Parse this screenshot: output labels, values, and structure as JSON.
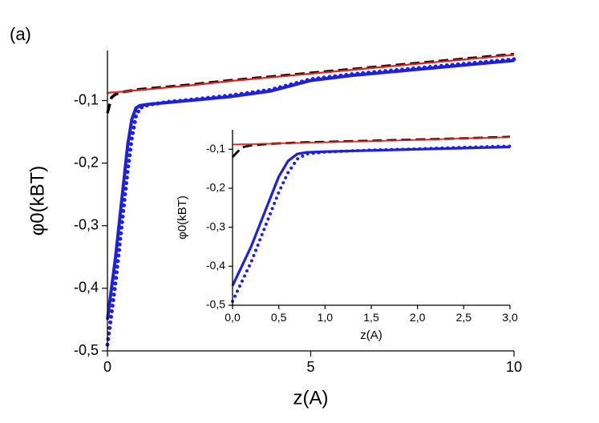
{
  "chart_data": [
    {
      "type": "line",
      "annotation": "(a)",
      "xlabel": "z(A)",
      "ylabel": "φ0(kBT)",
      "xlim": [
        0,
        10
      ],
      "ylim": [
        -0.5,
        -0.02
      ],
      "xticks": [
        0,
        5,
        10
      ],
      "yticks": [
        {
          "value": -0.5,
          "label": "-0,5"
        },
        {
          "value": -0.4,
          "label": "-0,4"
        },
        {
          "value": -0.3,
          "label": "-0,3"
        },
        {
          "value": -0.2,
          "label": "-0,2"
        },
        {
          "value": -0.1,
          "label": "-0,1"
        }
      ],
      "x": [
        0,
        0.1,
        0.2,
        0.3,
        0.4,
        0.5,
        0.6,
        0.7,
        0.8,
        1,
        1.5,
        2,
        3,
        4,
        5,
        6,
        7,
        8,
        9,
        10
      ],
      "series": [
        {
          "color": "#1f1fe0",
          "style": "solid",
          "values": [
            -0.45,
            -0.4,
            -0.35,
            -0.29,
            -0.23,
            -0.17,
            -0.13,
            -0.112,
            -0.108,
            -0.106,
            -0.103,
            -0.1,
            -0.094,
            -0.085,
            -0.068,
            -0.06,
            -0.054,
            -0.048,
            -0.042,
            -0.036
          ]
        },
        {
          "color": "#1f1fe0",
          "style": "dotted",
          "values": [
            -0.49,
            -0.44,
            -0.39,
            -0.33,
            -0.27,
            -0.21,
            -0.16,
            -0.125,
            -0.112,
            -0.107,
            -0.102,
            -0.099,
            -0.092,
            -0.083,
            -0.066,
            -0.058,
            -0.052,
            -0.046,
            -0.04,
            -0.034
          ]
        },
        {
          "color": "#000000",
          "style": "dashed",
          "values": [
            -0.12,
            -0.095,
            -0.09,
            -0.088,
            -0.086,
            -0.085,
            -0.084,
            -0.083,
            -0.082,
            -0.081,
            -0.078,
            -0.075,
            -0.068,
            -0.062,
            -0.056,
            -0.05,
            -0.044,
            -0.038,
            -0.032,
            -0.026
          ]
        },
        {
          "color": "#e0201b",
          "style": "solid",
          "values": [
            -0.088,
            -0.087,
            -0.087,
            -0.086,
            -0.086,
            -0.085,
            -0.084,
            -0.084,
            -0.083,
            -0.082,
            -0.079,
            -0.076,
            -0.069,
            -0.063,
            -0.057,
            -0.051,
            -0.045,
            -0.039,
            -0.033,
            -0.027
          ]
        }
      ]
    },
    {
      "type": "line",
      "xlabel": "z(A)",
      "ylabel": "φ0(kBT)",
      "xlim": [
        0,
        3
      ],
      "ylim": [
        -0.5,
        -0.05
      ],
      "xticks": [
        {
          "value": 0,
          "label": "0,0"
        },
        {
          "value": 0.5,
          "label": "0,5"
        },
        {
          "value": 1,
          "label": "1,0"
        },
        {
          "value": 1.5,
          "label": "1,5"
        },
        {
          "value": 2,
          "label": "2,0"
        },
        {
          "value": 2.5,
          "label": "2,5"
        },
        {
          "value": 3,
          "label": "3,0"
        }
      ],
      "yticks": [
        {
          "value": -0.5,
          "label": "-0,5"
        },
        {
          "value": -0.4,
          "label": "-0,4"
        },
        {
          "value": -0.3,
          "label": "-0,3"
        },
        {
          "value": -0.2,
          "label": "-0,2"
        },
        {
          "value": -0.1,
          "label": "-0,1"
        }
      ],
      "x": [
        0,
        0.1,
        0.2,
        0.3,
        0.4,
        0.5,
        0.6,
        0.7,
        0.8,
        1,
        1.5,
        2,
        2.5,
        3
      ],
      "series": [
        {
          "color": "#1f1fe0",
          "style": "solid",
          "values": [
            -0.45,
            -0.4,
            -0.35,
            -0.29,
            -0.23,
            -0.17,
            -0.13,
            -0.112,
            -0.108,
            -0.106,
            -0.103,
            -0.1,
            -0.097,
            -0.094
          ]
        },
        {
          "color": "#1f1fe0",
          "style": "dotted",
          "values": [
            -0.49,
            -0.44,
            -0.39,
            -0.33,
            -0.27,
            -0.21,
            -0.16,
            -0.125,
            -0.112,
            -0.107,
            -0.102,
            -0.099,
            -0.095,
            -0.092
          ]
        },
        {
          "color": "#000000",
          "style": "dashed",
          "values": [
            -0.12,
            -0.095,
            -0.09,
            -0.088,
            -0.086,
            -0.085,
            -0.084,
            -0.083,
            -0.082,
            -0.081,
            -0.078,
            -0.075,
            -0.072,
            -0.068
          ]
        },
        {
          "color": "#e0201b",
          "style": "solid",
          "values": [
            -0.088,
            -0.087,
            -0.087,
            -0.086,
            -0.086,
            -0.085,
            -0.084,
            -0.084,
            -0.083,
            -0.082,
            -0.079,
            -0.076,
            -0.072,
            -0.069
          ]
        }
      ]
    }
  ]
}
